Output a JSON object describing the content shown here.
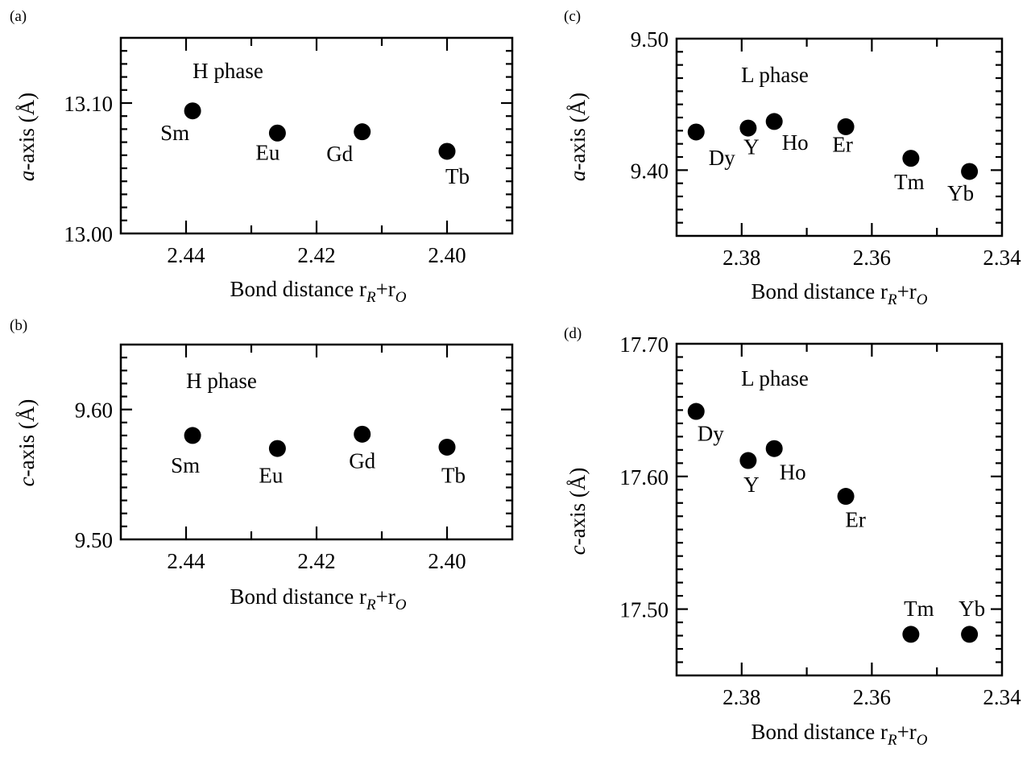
{
  "chart_data": [
    {
      "type": "scatter",
      "panel": "(a)",
      "annotation": "H phase",
      "ylabel_italic": "a",
      "ylabel_rest": "-axis (Å)",
      "xlabel": {
        "main": "Bond distance r",
        "sub1": "R",
        "mid": "+r",
        "sub2": "O"
      },
      "xlim": [
        2.45,
        2.39
      ],
      "ylim": [
        13.0,
        13.15
      ],
      "x_reversed": true,
      "xticks": [
        2.44,
        2.42,
        2.4
      ],
      "xtick_labels": [
        "2.44",
        "2.42",
        "2.40"
      ],
      "yticks": [
        13.0,
        13.1
      ],
      "ytick_labels": [
        "13.00",
        "13.10"
      ],
      "minor_x": 0.01,
      "minor_y": 0.01,
      "points": [
        {
          "label": "Sm",
          "x": 2.439,
          "y": 13.094
        },
        {
          "label": "Eu",
          "x": 2.426,
          "y": 13.077
        },
        {
          "label": "Gd",
          "x": 2.413,
          "y": 13.078
        },
        {
          "label": "Tb",
          "x": 2.4,
          "y": 13.063
        }
      ],
      "color": "#000000"
    },
    {
      "type": "scatter",
      "panel": "(b)",
      "annotation": "H phase",
      "ylabel_italic": "c",
      "ylabel_rest": "-axis (Å)",
      "xlabel": {
        "main": "Bond distance r",
        "sub1": "R",
        "mid": "+r",
        "sub2": "O"
      },
      "xlim": [
        2.45,
        2.39
      ],
      "ylim": [
        9.5,
        9.65
      ],
      "x_reversed": true,
      "xticks": [
        2.44,
        2.42,
        2.4
      ],
      "xtick_labels": [
        "2.44",
        "2.42",
        "2.40"
      ],
      "yticks": [
        9.5,
        9.6
      ],
      "ytick_labels": [
        "9.50",
        "9.60"
      ],
      "minor_x": 0.01,
      "minor_y": 0.01,
      "points": [
        {
          "label": "Sm",
          "x": 2.439,
          "y": 9.58
        },
        {
          "label": "Eu",
          "x": 2.426,
          "y": 9.57
        },
        {
          "label": "Gd",
          "x": 2.413,
          "y": 9.581
        },
        {
          "label": "Tb",
          "x": 2.4,
          "y": 9.571
        }
      ],
      "color": "#000000"
    },
    {
      "type": "scatter",
      "panel": "(c)",
      "annotation": "L phase",
      "ylabel_italic": "a",
      "ylabel_rest": "-axis (Å)",
      "xlabel": {
        "main": "Bond distance r",
        "sub1": "R",
        "mid": "+r",
        "sub2": "O"
      },
      "xlim": [
        2.39,
        2.34
      ],
      "ylim": [
        9.35,
        9.5
      ],
      "x_reversed": true,
      "xticks": [
        2.38,
        2.36,
        2.34
      ],
      "xtick_labels": [
        "2.38",
        "2.36",
        "2.34"
      ],
      "yticks": [
        9.4,
        9.5
      ],
      "ytick_labels": [
        "9.40",
        "9.50"
      ],
      "minor_x": 0.01,
      "minor_y": 0.01,
      "points": [
        {
          "label": "Dy",
          "x": 2.387,
          "y": 9.429
        },
        {
          "label": "Y",
          "x": 2.379,
          "y": 9.432
        },
        {
          "label": "Ho",
          "x": 2.375,
          "y": 9.437
        },
        {
          "label": "Er",
          "x": 2.364,
          "y": 9.433
        },
        {
          "label": "Tm",
          "x": 2.354,
          "y": 9.409
        },
        {
          "label": "Yb",
          "x": 2.345,
          "y": 9.399
        }
      ],
      "color": "#000000"
    },
    {
      "type": "scatter",
      "panel": "(d)",
      "annotation": "L phase",
      "ylabel_italic": "c",
      "ylabel_rest": "-axis (Å)",
      "xlabel": {
        "main": "Bond distance r",
        "sub1": "R",
        "mid": "+r",
        "sub2": "O"
      },
      "xlim": [
        2.39,
        2.34
      ],
      "ylim": [
        17.45,
        17.7
      ],
      "x_reversed": true,
      "xticks": [
        2.38,
        2.36,
        2.34
      ],
      "xtick_labels": [
        "2.38",
        "2.36",
        "2.34"
      ],
      "yticks": [
        17.5,
        17.6,
        17.7
      ],
      "ytick_labels": [
        "17.50",
        "17.60",
        "17.70"
      ],
      "minor_x": 0.01,
      "minor_y": 0.01,
      "points": [
        {
          "label": "Dy",
          "x": 2.387,
          "y": 17.649
        },
        {
          "label": "Y",
          "x": 2.379,
          "y": 17.612
        },
        {
          "label": "Ho",
          "x": 2.375,
          "y": 17.621
        },
        {
          "label": "Er",
          "x": 2.364,
          "y": 17.585
        },
        {
          "label": "Tm",
          "x": 2.354,
          "y": 17.481
        },
        {
          "label": "Yb",
          "x": 2.345,
          "y": 17.481
        }
      ],
      "color": "#000000"
    }
  ]
}
